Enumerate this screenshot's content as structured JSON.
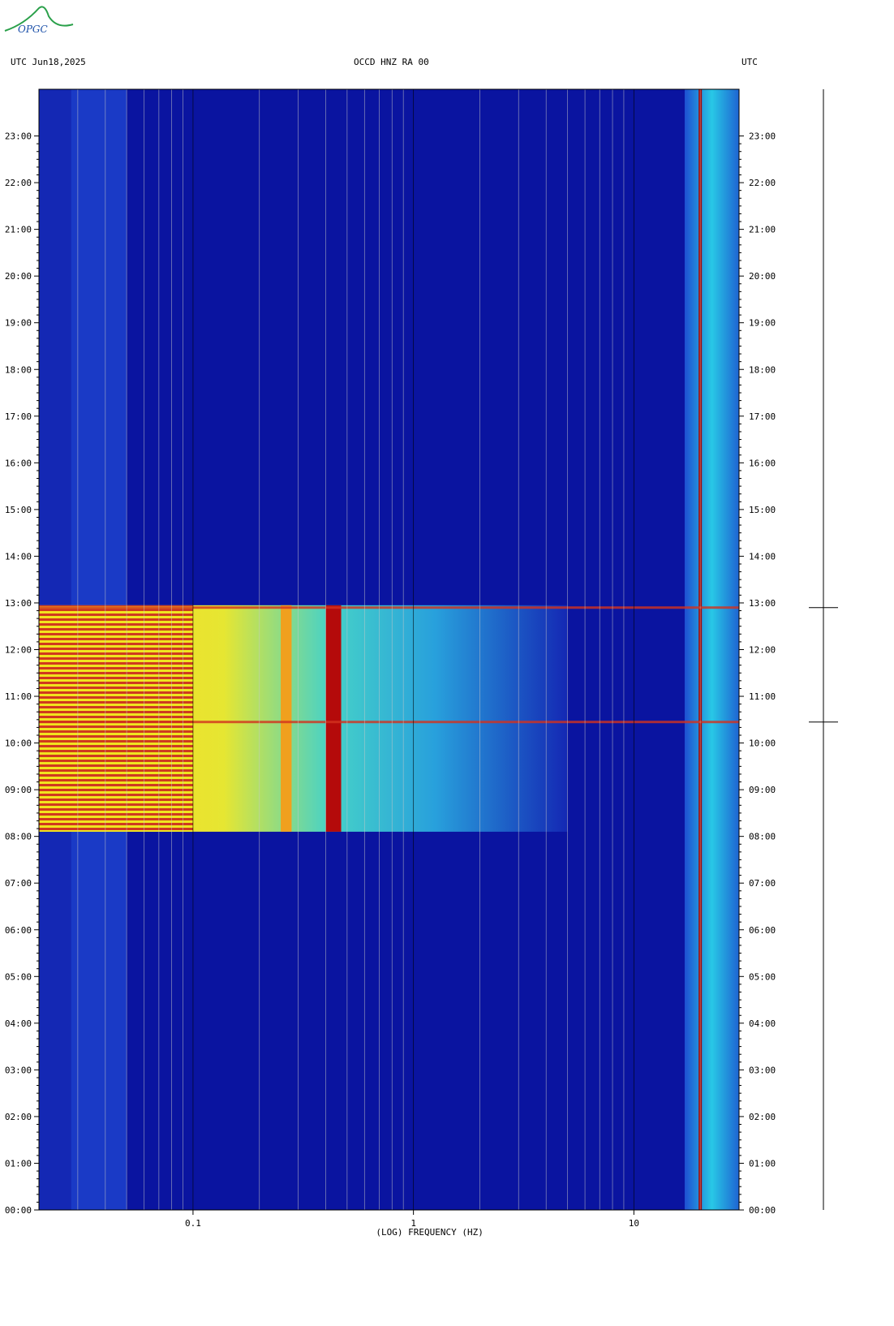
{
  "header": {
    "left": "UTC  Jun18,2025",
    "center": "OCCD HNZ RA 00",
    "right": "UTC"
  },
  "logo": {
    "text": "OPGC",
    "icon": "opgc-logo"
  },
  "colors": {
    "background_blue": "#1428b4",
    "deep_blue": "#0a14a0",
    "cyan": "#28c8e6",
    "yellow": "#f0e61e",
    "red": "#a00a0a",
    "gridline": "#c8c8c8"
  },
  "chart_data": {
    "type": "heatmap",
    "title": "OCCD HNZ RA 00",
    "xlabel": "(LOG) FREQUENCY (HZ)",
    "ylabel": "",
    "x_scale": "log",
    "xlim": [
      0.02,
      30
    ],
    "x_ticks": [
      {
        "value": 0.1,
        "label": "0.1"
      },
      {
        "value": 1,
        "label": "1"
      },
      {
        "value": 10,
        "label": "10"
      }
    ],
    "y_ticks": [
      "23:00",
      "22:00",
      "21:00",
      "20:00",
      "19:00",
      "18:00",
      "17:00",
      "16:00",
      "15:00",
      "14:00",
      "13:00",
      "12:00",
      "11:00",
      "10:00",
      "09:00",
      "08:00",
      "07:00",
      "06:00",
      "05:00",
      "04:00",
      "03:00",
      "02:00",
      "01:00",
      "00:00"
    ],
    "ylim_hours": [
      0,
      24
    ],
    "events": [
      {
        "name": "broadband high-energy episode",
        "start_hour": 8.1,
        "end_hour": 12.95,
        "max_freq_hz": 5
      },
      {
        "name": "persistent line",
        "freq_hz": 20
      },
      {
        "name": "impulsive line",
        "hour": 10.45
      },
      {
        "name": "impulsive line",
        "hour": 12.9
      }
    ],
    "grid": true
  }
}
